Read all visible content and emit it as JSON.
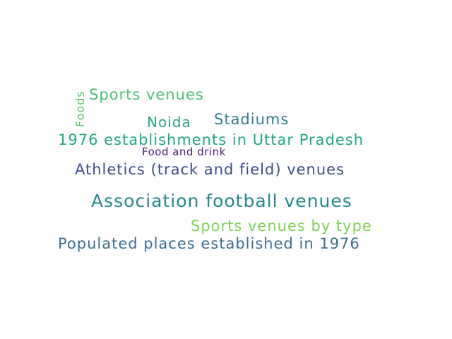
{
  "words": [
    {
      "text": "Sports venues",
      "color": "#4cc07a"
    },
    {
      "text": "Foods",
      "color": "#5fc672",
      "orientation": "vertical"
    },
    {
      "text": "Noida",
      "color": "#27a387"
    },
    {
      "text": "Stadiums",
      "color": "#2f7f8e"
    },
    {
      "text": "1976 establishments in Uttar Pradesh",
      "color": "#21a685"
    },
    {
      "text": "Food and drink",
      "color": "#4a1b6e"
    },
    {
      "text": "Athletics (track and field) venues",
      "color": "#3e4c8a"
    },
    {
      "text": "Association football venues",
      "color": "#23898e"
    },
    {
      "text": "Sports venues by type",
      "color": "#7cd250"
    },
    {
      "text": "Populated places established in 1976",
      "color": "#3b6f8e"
    }
  ]
}
